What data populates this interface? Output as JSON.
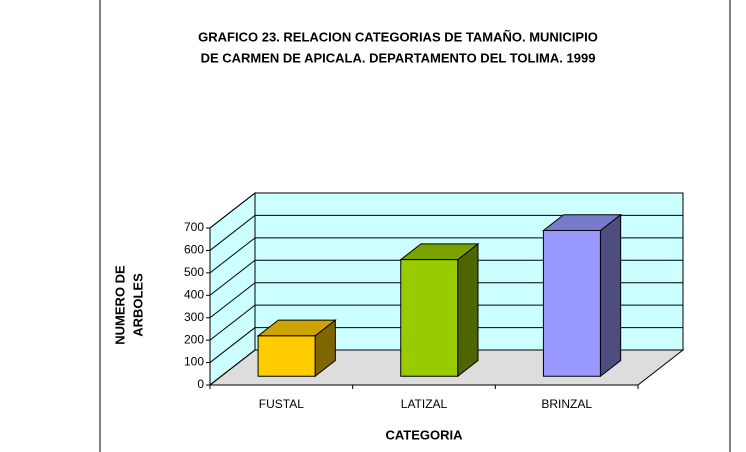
{
  "chart_data": {
    "type": "bar3d",
    "title": [
      "GRAFICO 23. RELACION CATEGORIAS DE TAMAÑO.  MUNICIPIO",
      "DE CARMEN DE APICALA. DEPARTAMENTO DEL TOLIMA. 1999"
    ],
    "x_label": "CATEGORIA",
    "y_label": [
      "NUMERO DE",
      "ARBOLES"
    ],
    "categories": [
      "FUSTAL",
      "LATIZAL",
      "BRINZAL"
    ],
    "values": [
      180,
      520,
      650
    ],
    "colors": [
      "#ffcc00",
      "#99cc00",
      "#9999ff"
    ],
    "ylim": [
      0,
      700
    ],
    "yticks": [
      0,
      100,
      200,
      300,
      400,
      500,
      600,
      700
    ],
    "grid": true
  }
}
